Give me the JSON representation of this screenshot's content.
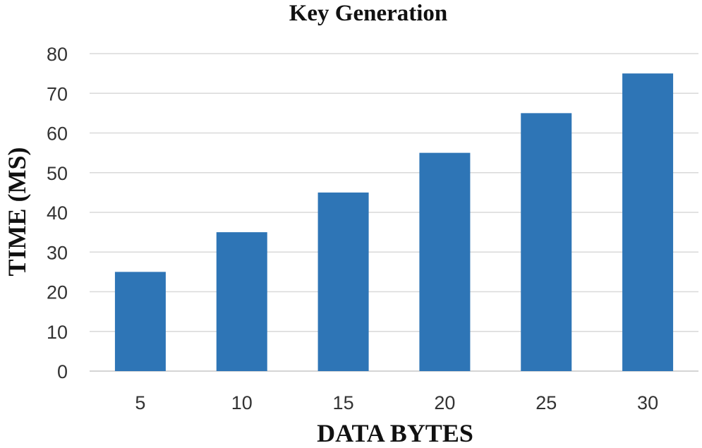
{
  "chart_data": {
    "type": "bar",
    "title": "Key Generation",
    "xlabel": "DATA BYTES",
    "ylabel": "TIME  (MS)",
    "categories": [
      "5",
      "10",
      "15",
      "20",
      "25",
      "30"
    ],
    "values": [
      25,
      35,
      45,
      55,
      65,
      75
    ],
    "ylim": [
      0,
      80
    ],
    "yticks": [
      0,
      10,
      20,
      30,
      40,
      50,
      60,
      70,
      80
    ],
    "grid": true,
    "legend": "none",
    "bar_color": "#2e75b6"
  }
}
